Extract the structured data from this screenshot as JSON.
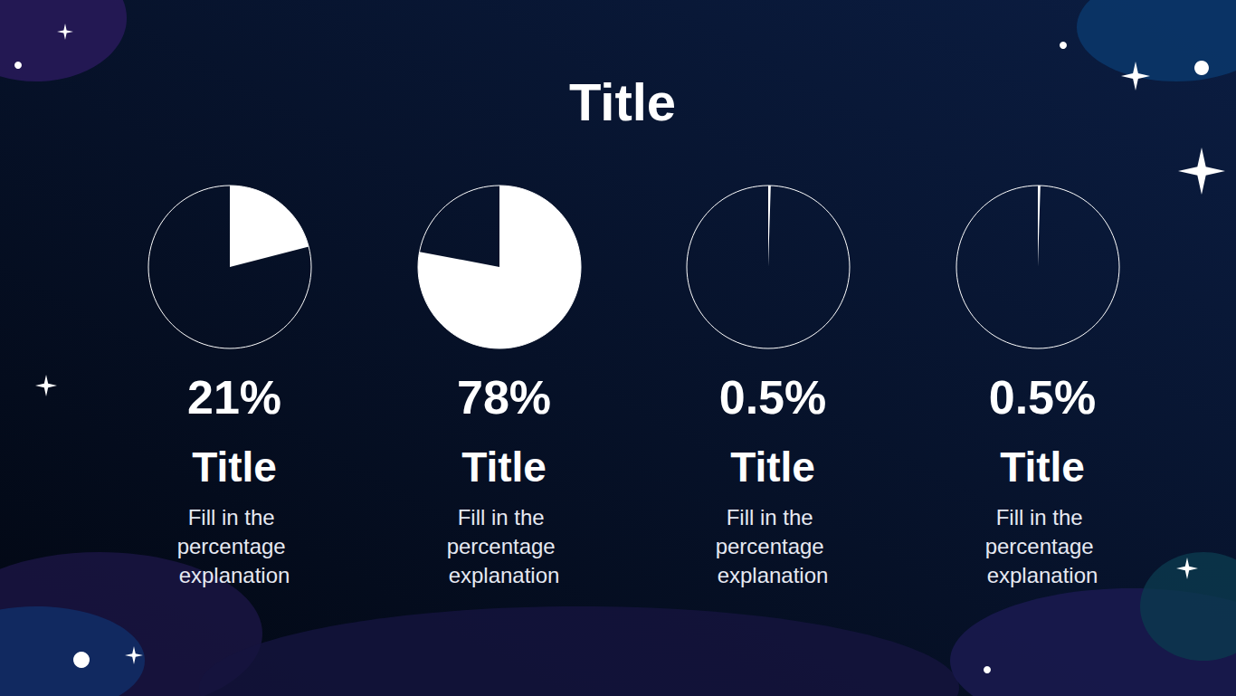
{
  "header": {
    "title": "Title"
  },
  "chart_data": [
    {
      "type": "pie",
      "title": "Title",
      "values": [
        21
      ],
      "value_labels": [
        "21%"
      ],
      "data_labels": true,
      "color": "#ffffff",
      "annotation": "Fill in the percentage explanation"
    },
    {
      "type": "pie",
      "title": "Title",
      "values": [
        78
      ],
      "value_labels": [
        "78%"
      ],
      "data_labels": true,
      "color": "#ffffff",
      "annotation": "Fill in the percentage explanation"
    },
    {
      "type": "pie",
      "title": "Title",
      "values": [
        0.5
      ],
      "value_labels": [
        "0.5%"
      ],
      "data_labels": true,
      "color": "#ffffff",
      "annotation": "Fill in the percentage explanation"
    },
    {
      "type": "pie",
      "title": "Title",
      "values": [
        0.5
      ],
      "value_labels": [
        "0.5%"
      ],
      "data_labels": true,
      "color": "#ffffff",
      "annotation": "Fill in the percentage explanation"
    }
  ]
}
